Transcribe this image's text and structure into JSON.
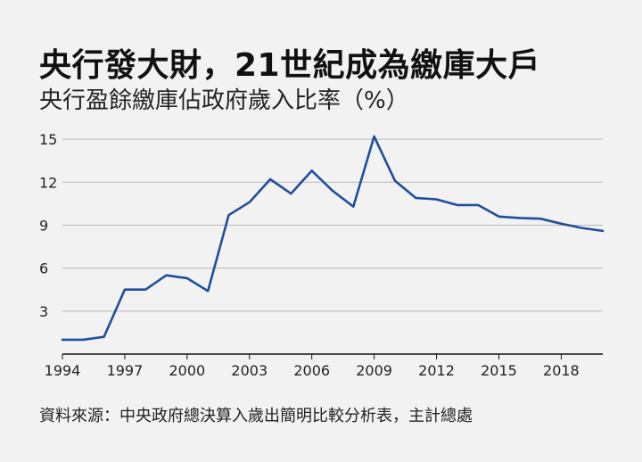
{
  "title": "央行發大財，21世紀成為繳庫大戶",
  "subtitle": "央行盈餘繳庫佔政府歲入比率（%）",
  "source": "資料來源：中央政府總決算入歲出簡明比較分析表，主計總處",
  "chart_data": {
    "type": "line",
    "title": "央行盈餘繳庫佔政府歲入比率（%）",
    "xlabel": "",
    "ylabel": "",
    "xlim": [
      1994,
      2020
    ],
    "ylim": [
      0,
      16
    ],
    "yticks": [
      3,
      6,
      9,
      12,
      15
    ],
    "xticks": [
      1994,
      1997,
      2000,
      2003,
      2006,
      2009,
      2012,
      2015,
      2018
    ],
    "grid": true,
    "color": "#1f4e9c",
    "series": [
      {
        "x": [
          1994,
          1995,
          1996,
          1997,
          1998,
          1999,
          2000,
          2001,
          2002,
          2003,
          2004,
          2005,
          2006,
          2007,
          2008,
          2009,
          2010,
          2011,
          2012,
          2013,
          2014,
          2015,
          2016,
          2017,
          2018,
          2019,
          2020
        ],
        "values": [
          1.0,
          1.0,
          1.2,
          4.5,
          4.5,
          5.5,
          5.3,
          4.4,
          9.7,
          10.6,
          12.2,
          11.2,
          12.8,
          11.4,
          10.3,
          15.2,
          12.1,
          10.9,
          10.8,
          10.4,
          10.4,
          9.6,
          9.5,
          9.45,
          9.1,
          8.8,
          8.6
        ]
      }
    ]
  }
}
